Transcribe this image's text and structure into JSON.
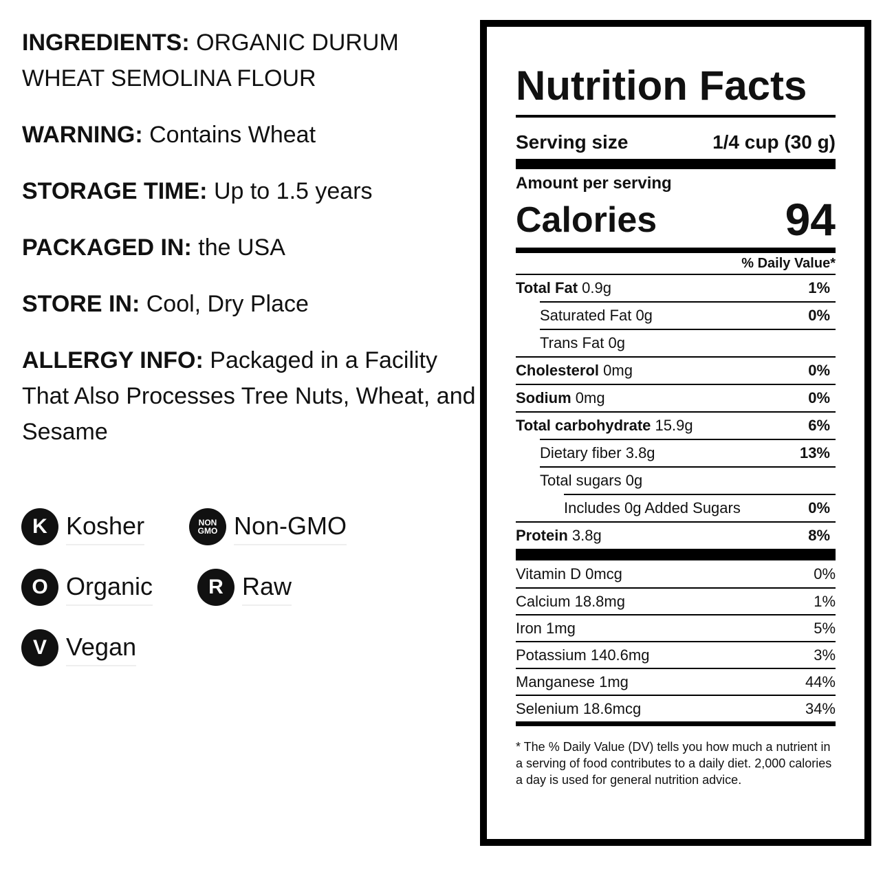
{
  "info": [
    {
      "label": "INGREDIENTS:",
      "text": "ORGANIC DURUM WHEAT SEMOLINA FLOUR"
    },
    {
      "label": "WARNING:",
      "text": "Contains Wheat"
    },
    {
      "label": "STORAGE TIME:",
      "text": "Up to 1.5 years"
    },
    {
      "label": "PACKAGED IN:",
      "text": "the USA"
    },
    {
      "label": "STORE IN:",
      "text": "Cool, Dry Place"
    },
    {
      "label": "ALLERGY INFO:",
      "text": "Packaged in a Facility That Also Processes Tree Nuts, Wheat, and Sesame"
    }
  ],
  "badges": [
    {
      "icon": [
        "K"
      ],
      "label": "Kosher"
    },
    {
      "icon": [
        "NON",
        "GMO"
      ],
      "label": "Non-GMO"
    },
    {
      "icon": [
        "O"
      ],
      "label": "Organic"
    },
    {
      "icon": [
        "R"
      ],
      "label": "Raw"
    },
    {
      "icon": [
        "V"
      ],
      "label": "Vegan"
    }
  ],
  "nutrition": {
    "title": "Nutrition Facts",
    "serving_label": "Serving size",
    "serving_value": "1/4 cup (30 g)",
    "amount_per_serving": "Amount per serving",
    "calories_label": "Calories",
    "calories": 94,
    "dv_header": "% Daily Value*",
    "rows": [
      {
        "name": "Total Fat",
        "amount": "0.9g",
        "dv": "1%"
      },
      {
        "name": "Saturated Fat",
        "amount": "0g",
        "dv": "0%"
      },
      {
        "name": "Trans Fat",
        "amount": "0g"
      },
      {
        "name": "Cholesterol",
        "amount": "0mg",
        "dv": "0%"
      },
      {
        "name": "Sodium",
        "amount": "0mg",
        "dv": "0%"
      },
      {
        "name": "Total carbohydrate",
        "amount": "15.9g",
        "dv": "6%"
      },
      {
        "name": "Dietary fiber",
        "amount": "3.8g",
        "dv": "13%"
      },
      {
        "name": "Total sugars",
        "amount": "0g"
      },
      {
        "name": "Includes 0g Added Sugars",
        "dv": "0%"
      },
      {
        "name": "Protein",
        "amount": "3.8g",
        "dv": "8%"
      }
    ],
    "vitamins": [
      {
        "name": "Vitamin D",
        "amount": "0mcg",
        "dv": "0%"
      },
      {
        "name": "Calcium",
        "amount": "18.8mg",
        "dv": "1%"
      },
      {
        "name": "Iron",
        "amount": "1mg",
        "dv": "5%"
      },
      {
        "name": "Potassium",
        "amount": "140.6mg",
        "dv": "3%"
      },
      {
        "name": "Manganese",
        "amount": "1mg",
        "dv": "44%"
      },
      {
        "name": "Selenium",
        "amount": "18.6mcg",
        "dv": "34%"
      }
    ],
    "footnote": "* The % Daily Value (DV) tells you how much a nutrient in a serving of food contributes to a daily diet. 2,000 calories a day is used for general nutrition advice."
  }
}
